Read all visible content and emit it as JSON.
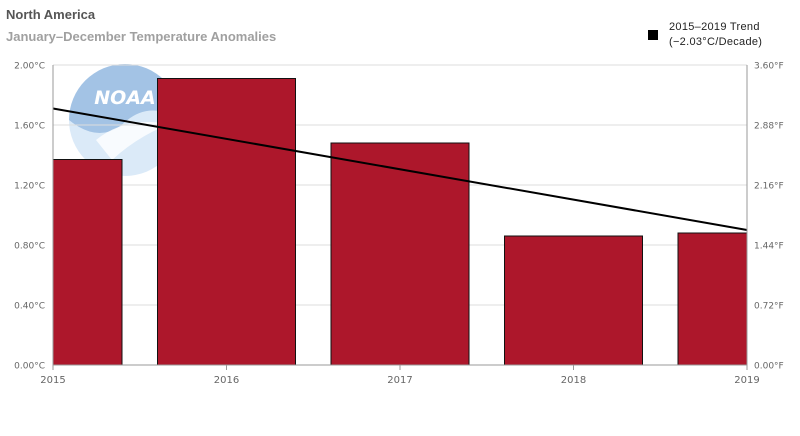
{
  "title": "North America",
  "subtitle": "January–December Temperature Anomalies",
  "logo_text": "NOAA",
  "legend": {
    "label": "2015–2019 Trend",
    "sublabel": "(−2.03°C/Decade)"
  },
  "colors": {
    "bar": "#ad172b",
    "bar_stroke": "#111111",
    "trend": "#000000",
    "grid": "#dddddd",
    "axis_text": "#666666"
  },
  "chart_data": {
    "type": "bar",
    "categories": [
      "2015",
      "2016",
      "2017",
      "2018",
      "2019"
    ],
    "series": [
      {
        "values": [
          1.37,
          1.91,
          1.48,
          0.86,
          0.88
        ]
      }
    ],
    "trend": {
      "label": "2015–2019 Trend",
      "rate_label": "(−2.03°C/Decade)",
      "start": {
        "x": "2015",
        "y": 1.71
      },
      "end": {
        "x": "2019",
        "y": 0.9
      }
    },
    "y_left": {
      "unit": "°C",
      "ylim": [
        0,
        2.0
      ],
      "ticks": [
        "0.00°C",
        "0.40°C",
        "0.80°C",
        "1.20°C",
        "1.60°C",
        "2.00°C"
      ]
    },
    "y_right": {
      "unit": "°F",
      "ylim": [
        0,
        3.6
      ],
      "ticks": [
        "0.00°F",
        "0.72°F",
        "1.44°F",
        "2.16°F",
        "2.88°F",
        "3.60°F"
      ]
    },
    "grid": true,
    "legend_position": "top-right"
  }
}
